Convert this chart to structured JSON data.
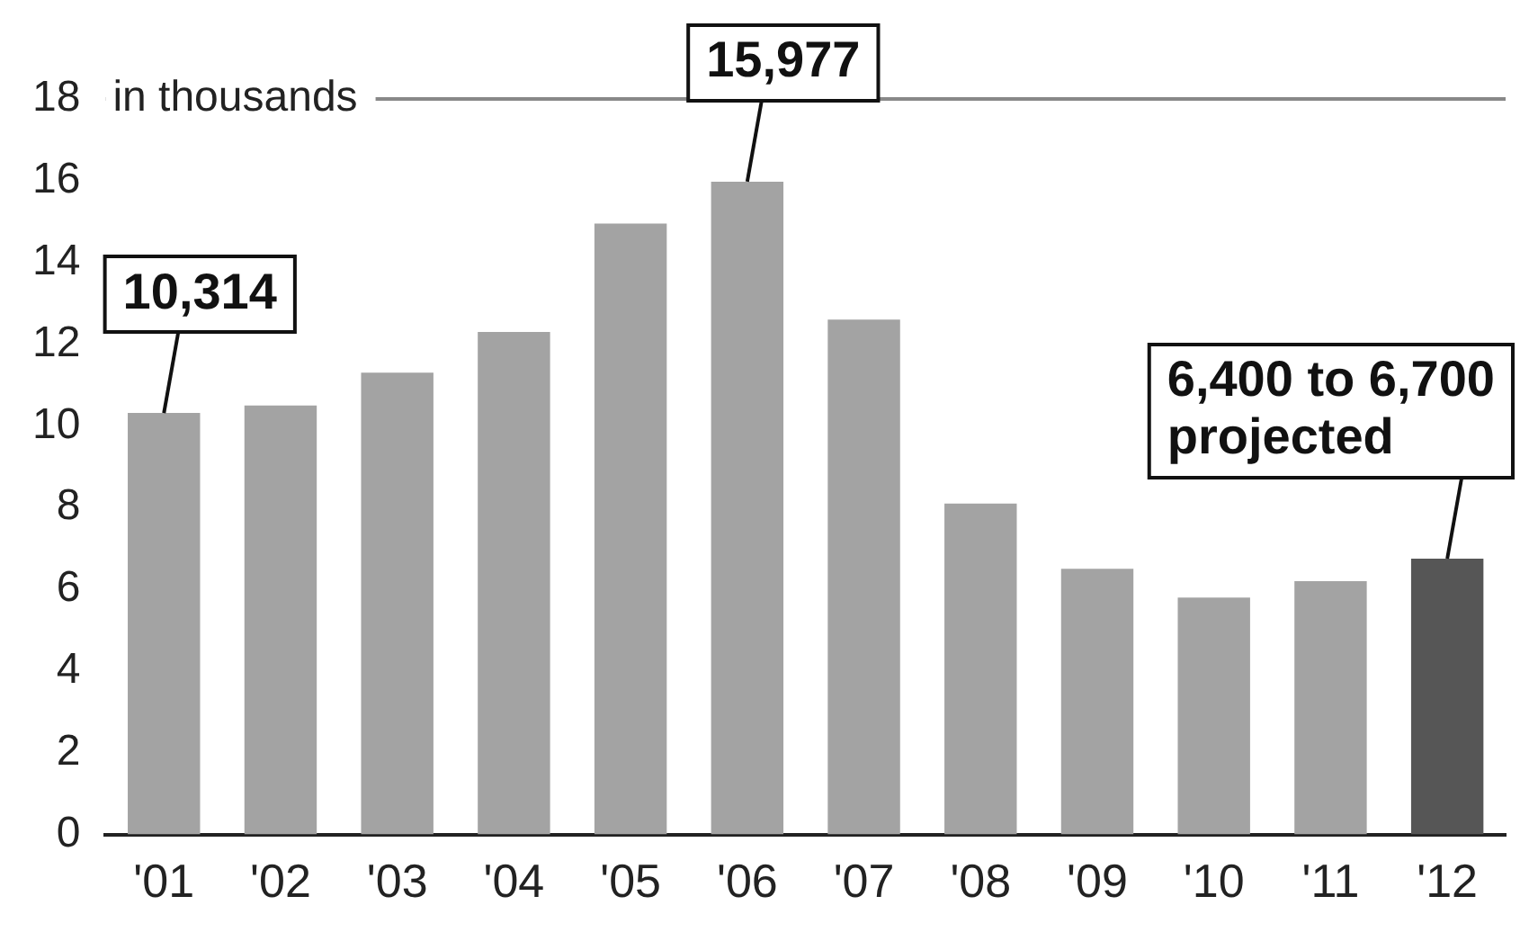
{
  "chart_data": {
    "type": "bar",
    "ylabel": "in thousands",
    "categories": [
      "'01",
      "'02",
      "'03",
      "'04",
      "'05",
      "'06",
      "'07",
      "'08",
      "'09",
      "'10",
      "'11",
      "'12"
    ],
    "values": [
      10.314,
      10.5,
      11.3,
      12.3,
      14.95,
      15.977,
      12.6,
      8.1,
      6.5,
      5.8,
      6.2,
      6.75
    ],
    "colors": [
      "#a3a3a3",
      "#a3a3a3",
      "#a3a3a3",
      "#a3a3a3",
      "#a3a3a3",
      "#a3a3a3",
      "#a3a3a3",
      "#a3a3a3",
      "#a3a3a3",
      "#a3a3a3",
      "#a3a3a3",
      "#565656"
    ],
    "ylim": [
      0,
      18
    ],
    "yticks": [
      0,
      2,
      4,
      6,
      8,
      10,
      12,
      14,
      16,
      18
    ],
    "grid": false,
    "ref_lines": [
      {
        "axis": "y",
        "value": 18,
        "color": "#888888"
      }
    ],
    "annotations": [
      {
        "text": "10,314",
        "x": "'01",
        "y": 10.314
      },
      {
        "text": "15,977",
        "x": "'06",
        "y": 15.977
      },
      {
        "text": "6,400 to 6,700 projected",
        "x": "'12",
        "y": 6.75
      }
    ]
  }
}
